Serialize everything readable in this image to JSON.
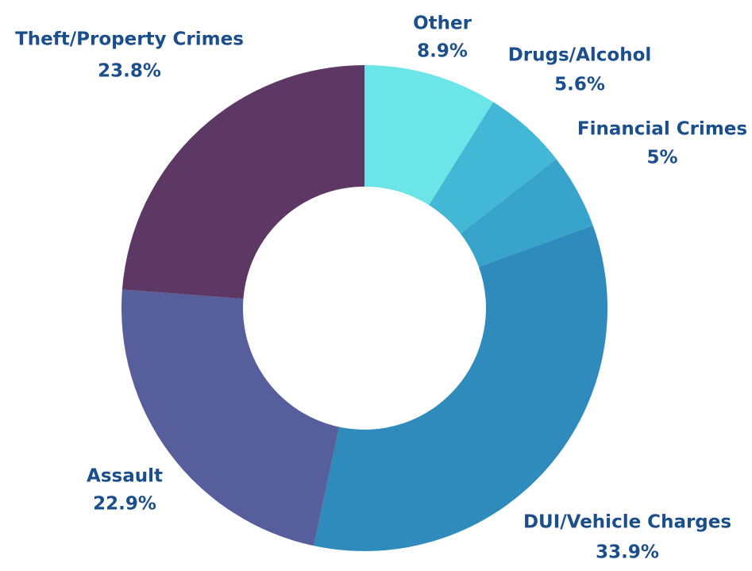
{
  "chart_data": {
    "type": "donut",
    "categories": [
      "Other",
      "Drugs/Alcohol",
      "Financial Crimes",
      "DUI/Vehicle Charges",
      "Assault",
      "Theft/Property Crimes"
    ],
    "values": [
      8.9,
      5.6,
      5,
      33.9,
      22.9,
      23.8
    ],
    "value_labels": [
      "8.9%",
      "5.6%",
      "5%",
      "33.9%",
      "22.9%",
      "23.8%"
    ],
    "colors": [
      "#6be5e8",
      "#43b8d6",
      "#38a3cb",
      "#2e8bbb",
      "#565f9b",
      "#5e3864"
    ]
  }
}
